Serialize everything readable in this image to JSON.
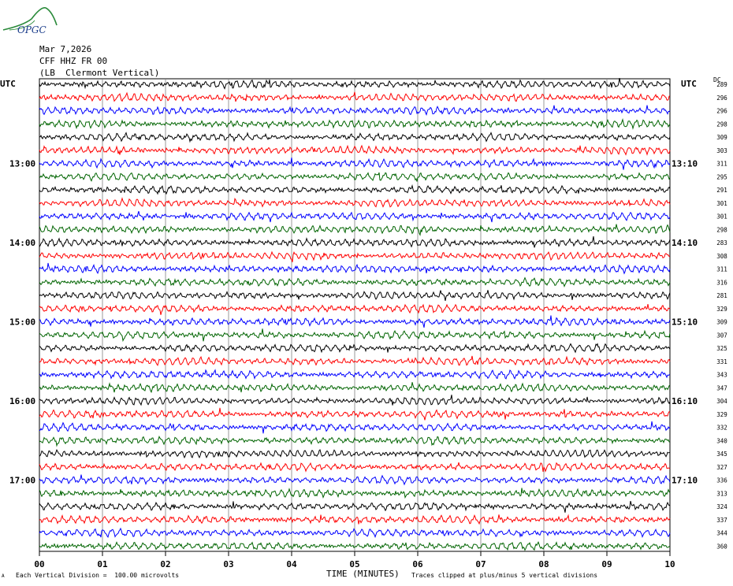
{
  "header": {
    "date": "Mar 7,2026",
    "station": "CFF HHZ FR 00",
    "location": "(LB  Clermont Vertical)",
    "logo_text": "OPGC"
  },
  "axis_labels": {
    "left_tz": "UTC",
    "right_tz": "UTC",
    "dc_label": "DC",
    "xlabel": "TIME (MINUTES)"
  },
  "footer": {
    "left_mark": "A",
    "scale_note": "Each Vertical Division =  100.00 microvolts",
    "clip_note": "Traces clipped at plus/minus 5 vertical divisions"
  },
  "colors": {
    "black": "#000000",
    "red": "#ff0000",
    "blue": "#0000ff",
    "green": "#006400",
    "grid": "#808080"
  },
  "chart_data": {
    "type": "line",
    "title": "CFF HHZ FR 00",
    "xlabel": "TIME (MINUTES)",
    "xlim": [
      0,
      10
    ],
    "x_ticks": [
      "00",
      "01",
      "02",
      "03",
      "04",
      "05",
      "06",
      "07",
      "08",
      "09",
      "10"
    ],
    "trace_interval_minutes": 10,
    "trace_count": 36,
    "trace_colors_cycle": [
      "black",
      "red",
      "blue",
      "green"
    ],
    "left_time_labels": [
      {
        "label": "13:00",
        "trace": 6
      },
      {
        "label": "14:00",
        "trace": 12
      },
      {
        "label": "15:00",
        "trace": 18
      },
      {
        "label": "16:00",
        "trace": 24
      },
      {
        "label": "17:00",
        "trace": 30
      }
    ],
    "right_time_labels": [
      {
        "label": "13:10",
        "trace": 6
      },
      {
        "label": "14:10",
        "trace": 12
      },
      {
        "label": "15:10",
        "trace": 18
      },
      {
        "label": "16:10",
        "trace": 24
      },
      {
        "label": "17:10",
        "trace": 30
      }
    ],
    "dc_offsets": [
      289,
      296,
      296,
      298,
      309,
      303,
      311,
      295,
      291,
      301,
      301,
      298,
      283,
      308,
      311,
      316,
      281,
      329,
      309,
      307,
      325,
      331,
      343,
      347,
      304,
      329,
      332,
      340,
      345,
      327,
      336,
      313,
      324,
      337,
      344,
      360
    ]
  }
}
